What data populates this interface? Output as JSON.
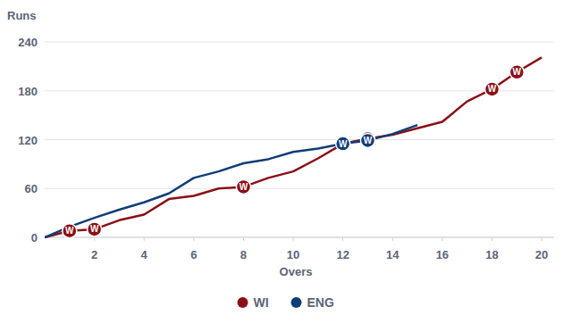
{
  "chart_data": {
    "type": "line",
    "x_label": "Overs",
    "y_label": "Runs",
    "annotation": "W",
    "x": [
      0,
      1,
      2,
      3,
      4,
      5,
      6,
      7,
      8,
      9,
      10,
      11,
      12,
      13,
      14,
      15,
      16,
      17,
      18,
      19,
      20
    ],
    "series": [
      {
        "name": "WI",
        "color": "#8b0f16",
        "values": [
          0,
          8,
          10,
          21,
          28,
          47,
          51,
          60,
          62,
          73,
          81,
          97,
          115,
          121,
          126,
          134,
          142,
          167,
          182,
          203,
          221
        ],
        "wickets": [
          1,
          2,
          8,
          13,
          18,
          19
        ]
      },
      {
        "name": "ENG",
        "color": "#103d78",
        "values": [
          0,
          13,
          24,
          34,
          43,
          54,
          73,
          81,
          91,
          96,
          105,
          109,
          115,
          119,
          127,
          138,
          null,
          null,
          null,
          null,
          null
        ],
        "wickets": [
          12,
          13
        ]
      }
    ],
    "xlim": [
      0,
      20.5
    ],
    "xticks": [
      2,
      4,
      6,
      8,
      10,
      12,
      14,
      16,
      18,
      20
    ],
    "ylim": [
      0,
      240
    ],
    "yticks": [
      0,
      60,
      120,
      180,
      240
    ],
    "grid": true,
    "legend": "bottom"
  }
}
